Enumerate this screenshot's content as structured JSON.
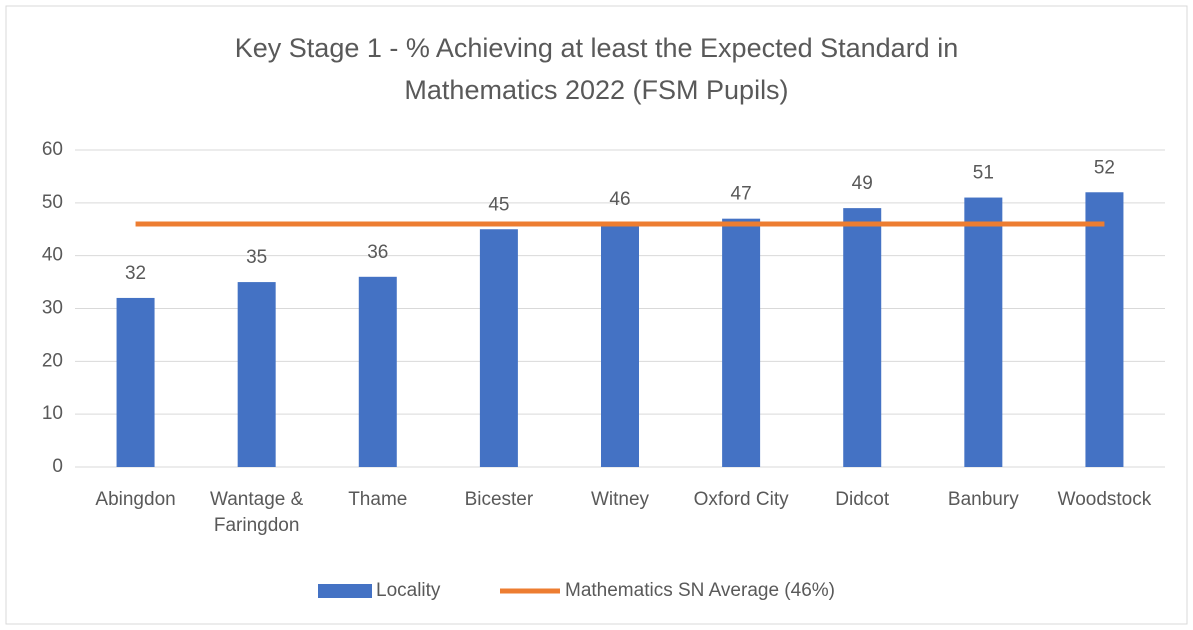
{
  "chart_data": {
    "type": "bar",
    "title": [
      "Key Stage 1 - % Achieving at least the Expected Standard in",
      "Mathematics 2022 (FSM Pupils)"
    ],
    "categories": [
      "Abingdon",
      "Wantage & Faringdon",
      "Thame",
      "Bicester",
      "Witney",
      "Oxford City",
      "Didcot",
      "Banbury",
      "Woodstock"
    ],
    "series": [
      {
        "name": "Locality",
        "type": "bar",
        "color": "#4472c4",
        "values": [
          32,
          35,
          36,
          45,
          46,
          47,
          49,
          51,
          52
        ]
      },
      {
        "name": "Mathematics SN Average (46%)",
        "type": "line",
        "color": "#ed7d31",
        "values": [
          46,
          46,
          46,
          46,
          46,
          46,
          46,
          46,
          46
        ]
      }
    ],
    "ylim": [
      0,
      60
    ],
    "yticks": [
      0,
      10,
      20,
      30,
      40,
      50,
      60
    ],
    "grid": true,
    "legend": "bottom"
  }
}
